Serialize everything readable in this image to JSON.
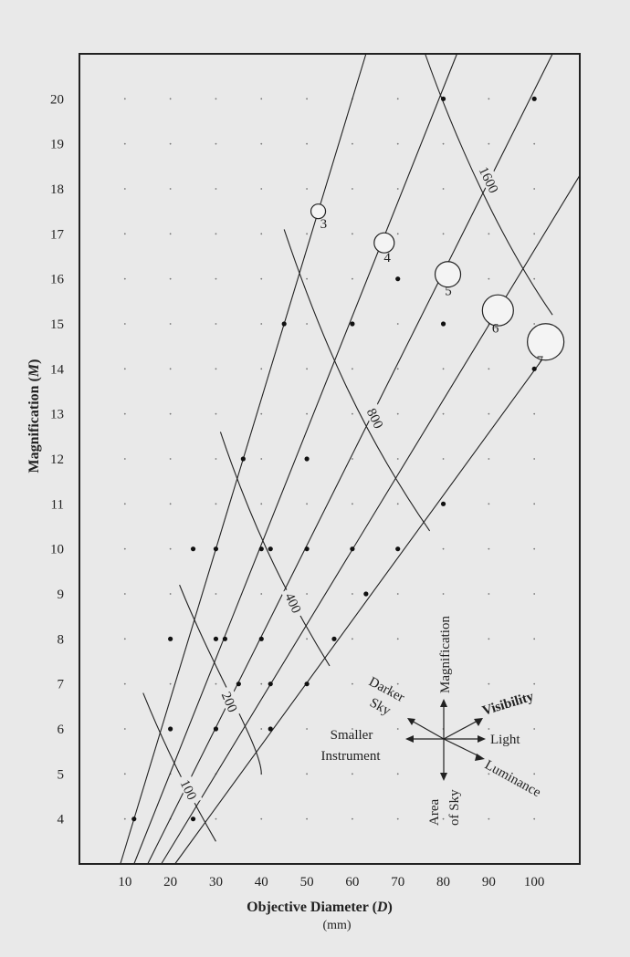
{
  "chart_data": {
    "type": "scatter",
    "xlabel_main": "Objective Diameter (",
    "xlabel_var": "D",
    "xlabel_close": ")",
    "xlabel_unit": "(mm)",
    "ylabel_main": "Magnification (",
    "ylabel_var": "M",
    "ylabel_close": ")",
    "xlim": [
      0,
      110
    ],
    "ylim": [
      3,
      21
    ],
    "x_ticks": [
      10,
      20,
      30,
      40,
      50,
      60,
      70,
      80,
      90,
      100
    ],
    "y_ticks": [
      4,
      5,
      6,
      7,
      8,
      9,
      10,
      11,
      12,
      13,
      14,
      15,
      16,
      17,
      18,
      19,
      20
    ],
    "grid": "dotted",
    "points": [
      {
        "x": 12,
        "y": 4
      },
      {
        "x": 25,
        "y": 4
      },
      {
        "x": 20,
        "y": 6
      },
      {
        "x": 30,
        "y": 6
      },
      {
        "x": 42,
        "y": 6
      },
      {
        "x": 35,
        "y": 7
      },
      {
        "x": 42,
        "y": 7
      },
      {
        "x": 50,
        "y": 7
      },
      {
        "x": 20,
        "y": 8
      },
      {
        "x": 30,
        "y": 8
      },
      {
        "x": 32,
        "y": 8
      },
      {
        "x": 40,
        "y": 8
      },
      {
        "x": 56,
        "y": 8
      },
      {
        "x": 63,
        "y": 9
      },
      {
        "x": 25,
        "y": 10
      },
      {
        "x": 30,
        "y": 10
      },
      {
        "x": 40,
        "y": 10
      },
      {
        "x": 42,
        "y": 10
      },
      {
        "x": 50,
        "y": 10
      },
      {
        "x": 60,
        "y": 10
      },
      {
        "x": 70,
        "y": 10
      },
      {
        "x": 80,
        "y": 11
      },
      {
        "x": 36,
        "y": 12
      },
      {
        "x": 50,
        "y": 12
      },
      {
        "x": 100,
        "y": 14
      },
      {
        "x": 45,
        "y": 15
      },
      {
        "x": 60,
        "y": 15
      },
      {
        "x": 80,
        "y": 15
      },
      {
        "x": 70,
        "y": 16
      },
      {
        "x": 80,
        "y": 20
      },
      {
        "x": 100,
        "y": 20
      }
    ],
    "magnitude_lines": [
      {
        "label": "3",
        "from": [
          9,
          3
        ],
        "to": [
          63,
          21
        ],
        "marker": [
          52.5,
          17.5
        ],
        "marker_size": 1
      },
      {
        "label": "4",
        "from": [
          12,
          3
        ],
        "to": [
          83,
          21
        ],
        "marker": [
          67,
          16.8
        ],
        "marker_size": 2
      },
      {
        "label": "5",
        "from": [
          15,
          3
        ],
        "to": [
          104,
          21
        ],
        "marker": [
          81,
          16.1
        ],
        "marker_size": 3
      },
      {
        "label": "6",
        "from": [
          18,
          3
        ],
        "to": [
          110,
          18.3
        ],
        "marker": [
          92,
          15.3
        ],
        "marker_size": 4
      },
      {
        "label": "7",
        "from": [
          21,
          3
        ],
        "to": [
          106,
          14.8
        ],
        "marker": [
          102.5,
          14.6
        ],
        "marker_size": 5
      }
    ],
    "area_curves": [
      {
        "label": "100",
        "points": [
          [
            14,
            6.8
          ],
          [
            20,
            5.3
          ],
          [
            26,
            4.2
          ],
          [
            30,
            3.5
          ]
        ],
        "label_at": [
          24,
          4.65
        ]
      },
      {
        "label": "200",
        "points": [
          [
            22,
            9.2
          ],
          [
            30,
            7.2
          ],
          [
            40,
            5.6
          ],
          [
            40,
            5.0
          ]
        ],
        "label_at": [
          33,
          6.6
        ]
      },
      {
        "label": "400",
        "points": [
          [
            31,
            12.6
          ],
          [
            37,
            10.8
          ],
          [
            44,
            9.2
          ],
          [
            55,
            7.4
          ]
        ],
        "label_at": [
          47,
          8.8
        ]
      },
      {
        "label": "800",
        "points": [
          [
            45,
            17.1
          ],
          [
            53,
            14.7
          ],
          [
            62,
            12.6
          ],
          [
            77,
            10.4
          ]
        ],
        "label_at": [
          65,
          12.9
        ]
      },
      {
        "label": "1600",
        "points": [
          [
            76,
            21.0
          ],
          [
            83,
            19.0
          ],
          [
            93,
            16.8
          ],
          [
            104,
            15.2
          ]
        ],
        "label_at": [
          90,
          18.2
        ]
      }
    ],
    "compass": {
      "up": "Magnification",
      "upper_left_1": "Darker",
      "upper_left_2": "Sky",
      "upper_right": "Visibility",
      "left_1": "Smaller",
      "left_2": "Instrument",
      "right": "Light",
      "lower_right": "Luminance",
      "down_1": "Area",
      "down_2": "of Sky"
    }
  }
}
